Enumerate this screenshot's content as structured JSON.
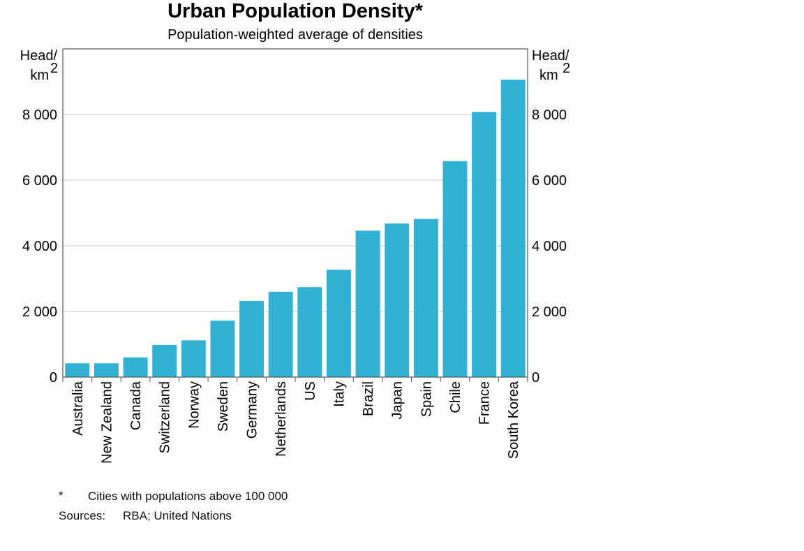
{
  "chart_data": {
    "type": "bar",
    "title": "Urban Population Density*",
    "subtitle": "Population-weighted average of densities",
    "unit_left": {
      "line1": "Head/",
      "line2": "km",
      "sup": "2"
    },
    "unit_right": {
      "line1": "Head/",
      "line2": "km",
      "sup": "2"
    },
    "categories": [
      "Australia",
      "New Zealand",
      "Canada",
      "Switzerland",
      "Norway",
      "Sweden",
      "Germany",
      "Netherlands",
      "US",
      "Italy",
      "Brazil",
      "Japan",
      "Spain",
      "Chile",
      "France",
      "South Korea"
    ],
    "values": [
      420,
      420,
      600,
      980,
      1120,
      1720,
      2320,
      2600,
      2740,
      3270,
      4460,
      4680,
      4820,
      6580,
      8080,
      9060
    ],
    "ylim": [
      0,
      10000
    ],
    "yticks": [
      0,
      2000,
      4000,
      6000,
      8000
    ],
    "ytick_labels": [
      "0",
      "2 000",
      "4 000",
      "6 000",
      "8 000"
    ],
    "grid": true,
    "bar_color": "#31b2d4",
    "grid_color": "#c8c8c8",
    "axis_color": "#555555"
  },
  "footnote": {
    "marker": "*",
    "text": "Cities with populations above 100 000"
  },
  "sources": {
    "label": "Sources:",
    "text": "RBA; United Nations"
  }
}
